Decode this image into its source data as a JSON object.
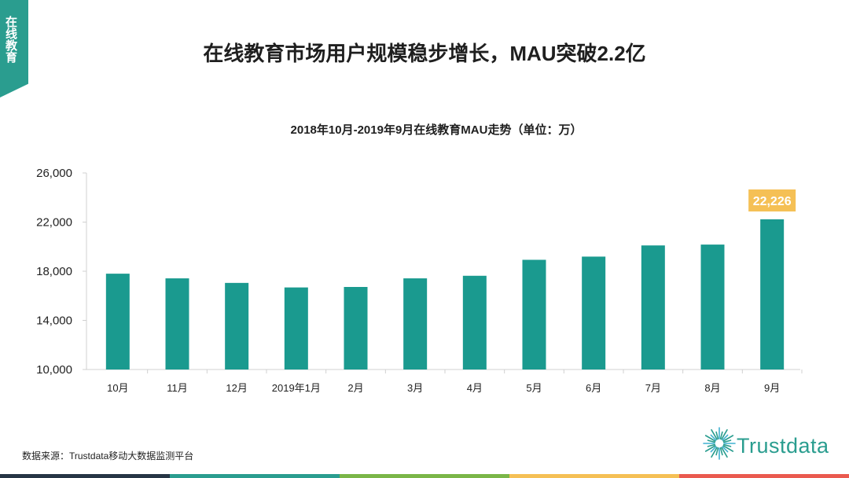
{
  "side_tab": {
    "label": "在线教育"
  },
  "header": {
    "title": "在线教育市场用户规模稳步增长，MAU突破2.2亿"
  },
  "chart_data": {
    "type": "bar",
    "title": "2018年10月-2019年9月在线教育MAU走势（单位：万）",
    "categories": [
      "10月",
      "11月",
      "12月",
      "2019年1月",
      "2月",
      "3月",
      "4月",
      "5月",
      "6月",
      "7月",
      "8月",
      "9月"
    ],
    "values": [
      17800,
      17420,
      17050,
      16680,
      16720,
      17420,
      17630,
      18930,
      19190,
      20100,
      20170,
      22226
    ],
    "ylim": [
      10000,
      26000
    ],
    "yticks": [
      10000,
      14000,
      18000,
      22000,
      26000
    ],
    "ytick_labels": [
      "10,000",
      "14,000",
      "18,000",
      "22,000",
      "26,000"
    ],
    "highlight": {
      "index": 11,
      "label": "22,226"
    },
    "xlabel": "",
    "ylabel": "",
    "bar_color": "#1a9a8f",
    "highlight_color": "#f5c055"
  },
  "footer": {
    "source": "数据来源：Trustdata移动大数据监测平台",
    "logo_text": "Trustdata"
  },
  "bottom_bar_colors": [
    "#263545",
    "#2a9d8f",
    "#7ab648",
    "#f5c055",
    "#ea5a4f"
  ]
}
